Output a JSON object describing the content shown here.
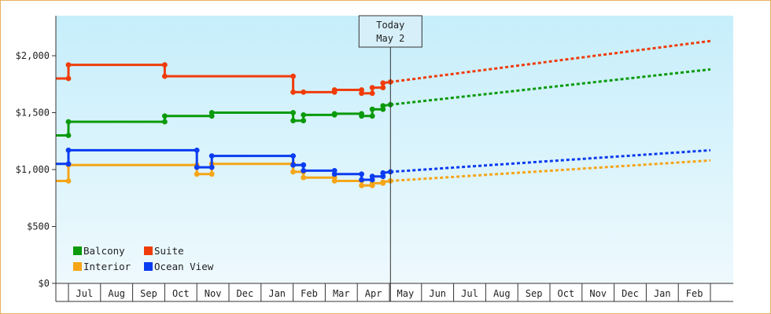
{
  "chart_data": {
    "type": "line",
    "step": true,
    "y_ticks": [
      {
        "v": 0,
        "label": "$0"
      },
      {
        "v": 500,
        "label": "$500"
      },
      {
        "v": 1000,
        "label": "$1,000"
      },
      {
        "v": 1500,
        "label": "$1,500"
      },
      {
        "v": 2000,
        "label": "$2,000"
      }
    ],
    "ylim": [
      0,
      2000
    ],
    "months": [
      "Jul",
      "Aug",
      "Sep",
      "Oct",
      "Nov",
      "Dec",
      "Jan",
      "Feb",
      "Mar",
      "Apr",
      "May",
      "Jun",
      "Jul",
      "Aug",
      "Sep",
      "Oct",
      "Nov",
      "Dec",
      "Jan",
      "Feb"
    ],
    "today": {
      "label": "Today",
      "date_label": "May 2",
      "date": "2025-05-02"
    },
    "legend": {
      "placement": "bottom-left"
    },
    "series": [
      {
        "name": "Balcony",
        "color": "#0a9a0a",
        "history": [
          [
            "2024-06-10",
            1300
          ],
          [
            "2024-07-01",
            1300
          ],
          [
            "2024-07-01",
            1420
          ],
          [
            "2024-10-01",
            1420
          ],
          [
            "2024-10-01",
            1470
          ],
          [
            "2024-11-15",
            1470
          ],
          [
            "2024-11-15",
            1500
          ],
          [
            "2025-02-01",
            1500
          ],
          [
            "2025-02-01",
            1430
          ],
          [
            "2025-02-10",
            1430
          ],
          [
            "2025-02-10",
            1480
          ],
          [
            "2025-03-10",
            1480
          ],
          [
            "2025-03-10",
            1490
          ],
          [
            "2025-04-05",
            1490
          ],
          [
            "2025-04-05",
            1470
          ],
          [
            "2025-04-15",
            1470
          ],
          [
            "2025-04-15",
            1530
          ],
          [
            "2025-04-25",
            1530
          ],
          [
            "2025-04-25",
            1560
          ],
          [
            "2025-05-02",
            1570
          ]
        ],
        "forecast": [
          [
            "2025-05-02",
            1570
          ],
          [
            "2026-03-01",
            1880
          ]
        ]
      },
      {
        "name": "Suite",
        "color": "#f03c0a",
        "history": [
          [
            "2024-06-10",
            1800
          ],
          [
            "2024-07-01",
            1800
          ],
          [
            "2024-07-01",
            1920
          ],
          [
            "2024-10-01",
            1920
          ],
          [
            "2024-10-01",
            1820
          ],
          [
            "2025-02-01",
            1820
          ],
          [
            "2025-02-01",
            1680
          ],
          [
            "2025-02-10",
            1680
          ],
          [
            "2025-03-10",
            1680
          ],
          [
            "2025-03-10",
            1700
          ],
          [
            "2025-04-05",
            1700
          ],
          [
            "2025-04-05",
            1670
          ],
          [
            "2025-04-15",
            1670
          ],
          [
            "2025-04-15",
            1720
          ],
          [
            "2025-04-25",
            1720
          ],
          [
            "2025-04-25",
            1760
          ],
          [
            "2025-05-02",
            1770
          ]
        ],
        "forecast": [
          [
            "2025-05-02",
            1770
          ],
          [
            "2026-03-01",
            2130
          ]
        ]
      },
      {
        "name": "Interior",
        "color": "#f5a517",
        "history": [
          [
            "2024-06-10",
            900
          ],
          [
            "2024-07-01",
            900
          ],
          [
            "2024-07-01",
            1040
          ],
          [
            "2024-11-01",
            1040
          ],
          [
            "2024-11-01",
            960
          ],
          [
            "2024-11-15",
            960
          ],
          [
            "2024-11-15",
            1050
          ],
          [
            "2025-02-01",
            1050
          ],
          [
            "2025-02-01",
            980
          ],
          [
            "2025-02-10",
            980
          ],
          [
            "2025-02-10",
            930
          ],
          [
            "2025-03-10",
            930
          ],
          [
            "2025-03-10",
            900
          ],
          [
            "2025-04-05",
            900
          ],
          [
            "2025-04-05",
            860
          ],
          [
            "2025-04-15",
            860
          ],
          [
            "2025-04-15",
            880
          ],
          [
            "2025-04-25",
            880
          ],
          [
            "2025-04-25",
            890
          ],
          [
            "2025-05-02",
            900
          ]
        ],
        "forecast": [
          [
            "2025-05-02",
            900
          ],
          [
            "2026-03-01",
            1080
          ]
        ]
      },
      {
        "name": "Ocean View",
        "color": "#0a3cf0",
        "history": [
          [
            "2024-06-10",
            1050
          ],
          [
            "2024-07-01",
            1050
          ],
          [
            "2024-07-01",
            1170
          ],
          [
            "2024-11-01",
            1170
          ],
          [
            "2024-11-01",
            1020
          ],
          [
            "2024-11-15",
            1020
          ],
          [
            "2024-11-15",
            1120
          ],
          [
            "2025-02-01",
            1120
          ],
          [
            "2025-02-01",
            1040
          ],
          [
            "2025-02-10",
            1040
          ],
          [
            "2025-02-10",
            990
          ],
          [
            "2025-03-10",
            990
          ],
          [
            "2025-03-10",
            960
          ],
          [
            "2025-04-05",
            960
          ],
          [
            "2025-04-05",
            910
          ],
          [
            "2025-04-15",
            910
          ],
          [
            "2025-04-15",
            940
          ],
          [
            "2025-04-25",
            940
          ],
          [
            "2025-04-25",
            970
          ],
          [
            "2025-05-02",
            980
          ]
        ],
        "forecast": [
          [
            "2025-05-02",
            980
          ],
          [
            "2026-03-01",
            1170
          ]
        ]
      }
    ]
  }
}
